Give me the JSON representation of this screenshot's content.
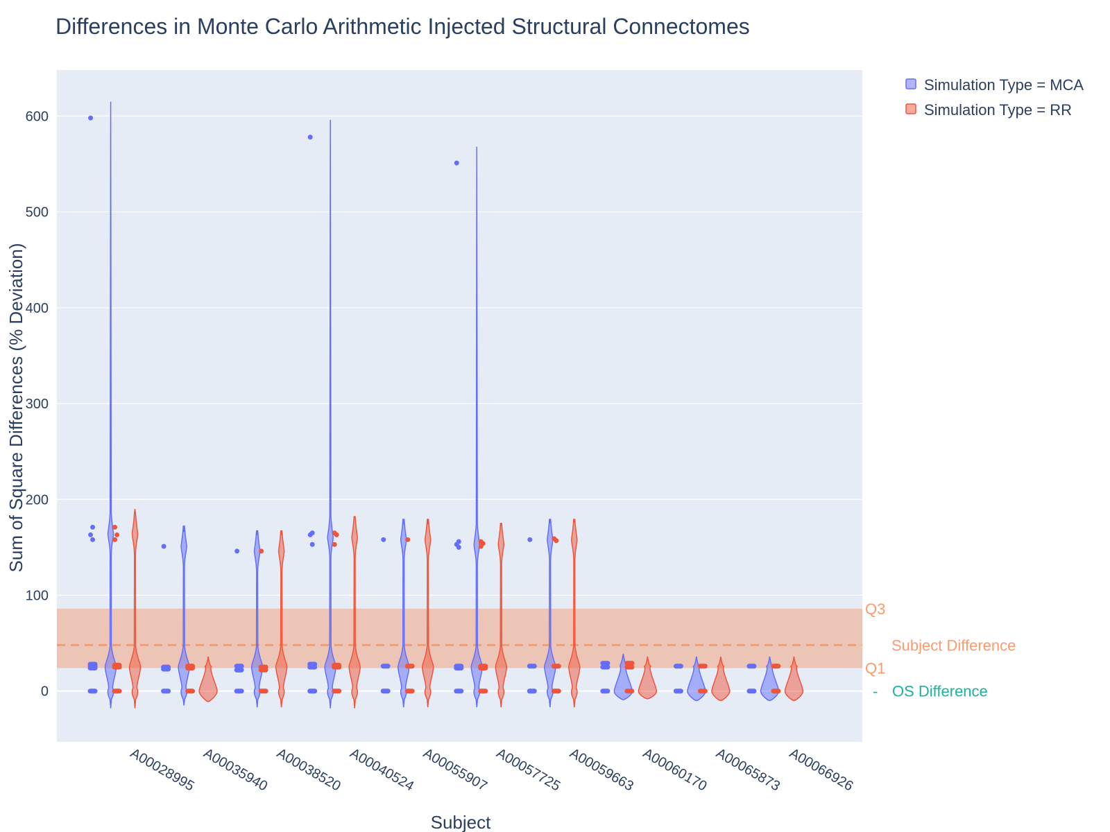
{
  "chart_data": {
    "type": "violin",
    "title": "Differences in Monte Carlo Arithmetic Injected Structural Connectomes",
    "xlabel": "Subject",
    "ylabel": "Sum of Square Differences (% Deviation)",
    "ylim": [
      -53,
      648
    ],
    "yticks": [
      0,
      100,
      200,
      300,
      400,
      500,
      600
    ],
    "ytick_labels": [
      "0",
      "100",
      "200",
      "300",
      "400",
      "500",
      "600"
    ],
    "grid": true,
    "legend_position": "top-right",
    "categories": [
      "A00028995",
      "A00035940",
      "A00038520",
      "A00040524",
      "A00055907",
      "A00057725",
      "A00059663",
      "A00060170",
      "A00065873",
      "A00066926"
    ],
    "series": [
      {
        "name": "Simulation Type = MCA",
        "color": "#636efa",
        "violins": [
          {
            "min": -18,
            "max": 615,
            "points": [
              598,
              171,
              163,
              158,
              28,
              26,
              24,
              0
            ]
          },
          {
            "min": -15,
            "max": 166,
            "points": [
              151,
              25,
              23,
              0
            ]
          },
          {
            "min": -17,
            "max": 163,
            "points": [
              146,
              26,
              22,
              0
            ]
          },
          {
            "min": -18,
            "max": 596,
            "points": [
              578,
              165,
              163,
              153,
              28,
              25,
              0
            ]
          },
          {
            "min": -17,
            "max": 174,
            "points": [
              158,
              26,
              0
            ]
          },
          {
            "min": -17,
            "max": 568,
            "points": [
              551,
              156,
              153,
              150,
              26,
              24,
              0
            ]
          },
          {
            "min": -17,
            "max": 175,
            "points": [
              158,
              26,
              0
            ]
          },
          {
            "min": -9,
            "max": 39,
            "points": [
              29,
              25,
              0
            ]
          },
          {
            "min": -10,
            "max": 36,
            "points": [
              26,
              0
            ]
          },
          {
            "min": -10,
            "max": 36,
            "points": [
              26,
              0
            ]
          }
        ]
      },
      {
        "name": "Simulation Type = RR",
        "color": "#ef553b",
        "violins": [
          {
            "min": -18,
            "max": 190,
            "points": [
              171,
              163,
              158,
              27,
              25,
              0
            ]
          },
          {
            "min": -11,
            "max": 36,
            "points": [
              26,
              24,
              0
            ]
          },
          {
            "min": -17,
            "max": 163,
            "points": [
              146,
              25,
              22,
              0
            ]
          },
          {
            "min": -18,
            "max": 182,
            "points": [
              165,
              163,
              153,
              27,
              25,
              0
            ]
          },
          {
            "min": -17,
            "max": 174,
            "points": [
              158,
              26,
              0
            ]
          },
          {
            "min": -17,
            "max": 174,
            "points": [
              156,
              154,
              151,
              26,
              24,
              0
            ]
          },
          {
            "min": -17,
            "max": 176,
            "points": [
              159,
              157,
              26,
              0
            ]
          },
          {
            "min": -8,
            "max": 36,
            "points": [
              29,
              25,
              0
            ]
          },
          {
            "min": -10,
            "max": 36,
            "points": [
              26,
              0
            ]
          },
          {
            "min": -10,
            "max": 36,
            "points": [
              26,
              0
            ]
          }
        ]
      }
    ],
    "reference": {
      "q1": 24,
      "q3": 86,
      "subject_difference": 48,
      "os_difference": 0,
      "q1_label": "Q1",
      "q3_label": "Q3",
      "subject_label": "Subject Difference",
      "os_label": "OS Difference",
      "os_marker": "-",
      "band_color": "#f4a582",
      "subject_color": "#fd9a6c",
      "os_color": "#19b39e"
    }
  }
}
